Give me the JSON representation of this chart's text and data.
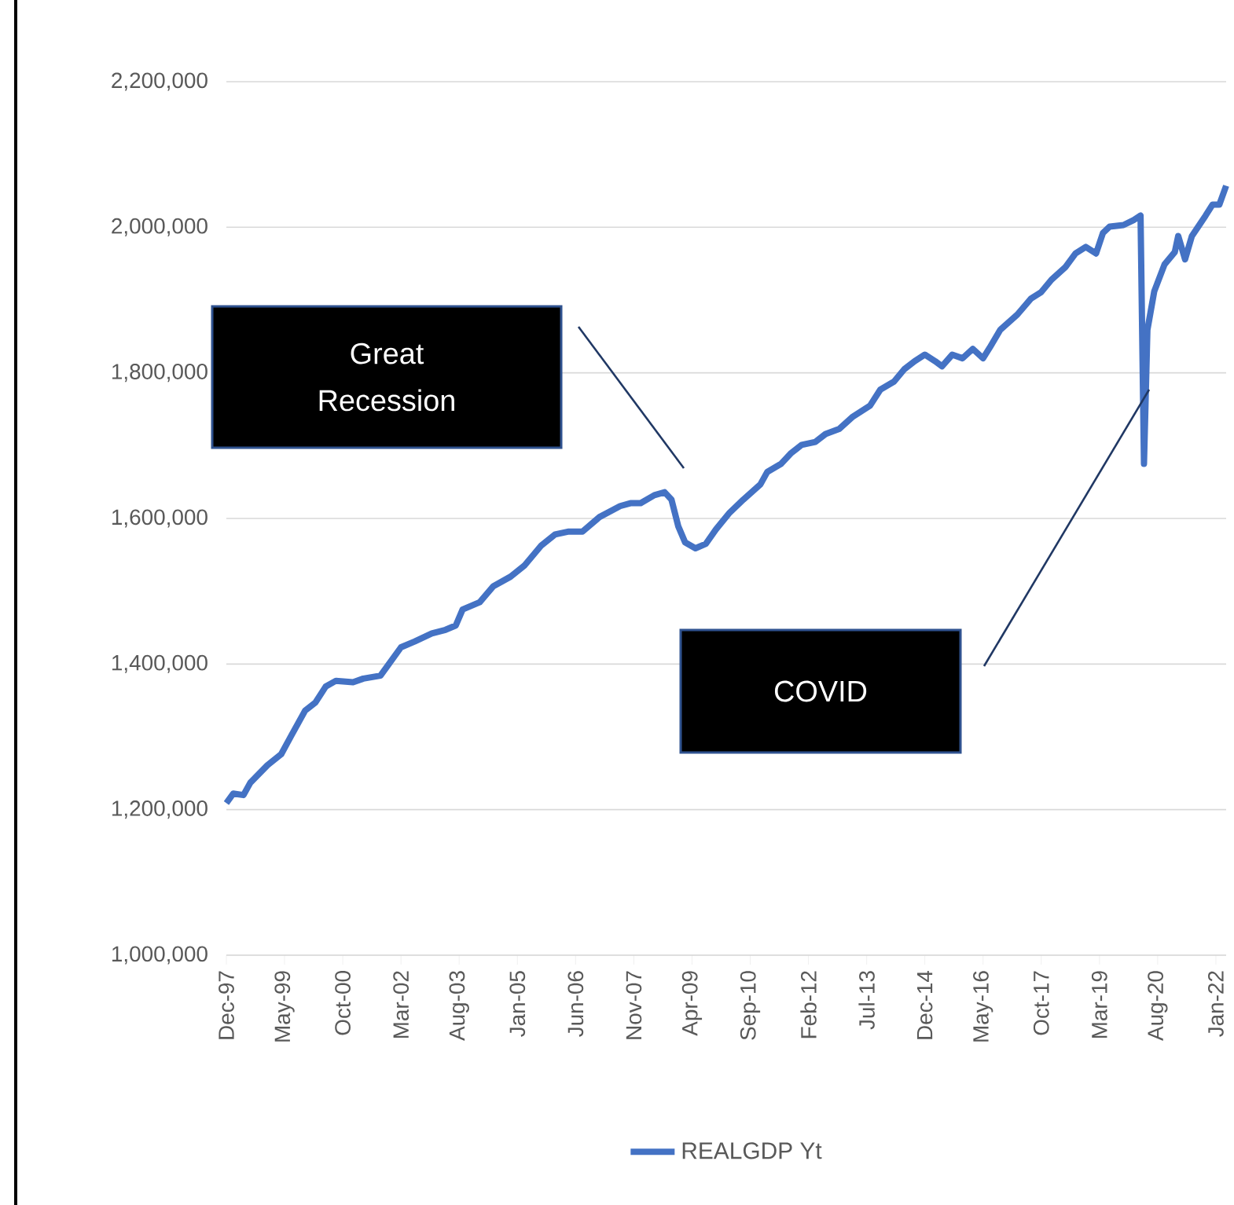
{
  "chart_data": {
    "type": "line",
    "x": [
      "1997-12",
      "1998-02",
      "1998-05",
      "1998-07",
      "1998-12",
      "1999-04",
      "1999-07",
      "1999-11",
      "2000-02",
      "2000-05",
      "2000-08",
      "2001-01",
      "2001-04",
      "2001-09",
      "2001-11",
      "2002-03",
      "2002-07",
      "2002-12",
      "2003-04",
      "2003-07",
      "2003-09",
      "2004-02",
      "2004-06",
      "2004-11",
      "2005-03",
      "2005-08",
      "2005-12",
      "2006-04",
      "2006-08",
      "2007-01",
      "2007-07",
      "2007-10",
      "2008-01",
      "2008-05",
      "2008-08",
      "2008-10",
      "2008-12",
      "2009-02",
      "2009-05",
      "2009-08",
      "2009-11",
      "2010-03",
      "2010-07",
      "2010-12",
      "2011-02",
      "2011-06",
      "2011-09",
      "2011-12",
      "2012-04",
      "2012-07",
      "2012-11",
      "2013-03",
      "2013-08",
      "2013-11",
      "2014-03",
      "2014-06",
      "2014-09",
      "2014-12",
      "2015-03",
      "2015-05",
      "2015-08",
      "2015-11",
      "2016-02",
      "2016-05",
      "2016-07",
      "2016-10",
      "2017-03",
      "2017-07",
      "2017-10",
      "2018-01",
      "2018-05",
      "2018-08",
      "2018-11",
      "2019-02",
      "2019-04",
      "2019-06",
      "2019-10",
      "2020-01",
      "2020-03",
      "2020-04",
      "2020-05",
      "2020-07",
      "2020-10",
      "2021-01",
      "2021-02",
      "2021-04",
      "2021-06",
      "2021-10",
      "2021-12",
      "2022-02",
      "2022-04"
    ],
    "series": [
      {
        "name": "REALGDP Yt",
        "color": "#4472c4",
        "values": [
          1209000,
          1222000,
          1220000,
          1237000,
          1261000,
          1276000,
          1302000,
          1336000,
          1347000,
          1369000,
          1377000,
          1375000,
          1380000,
          1384000,
          1397000,
          1423000,
          1431000,
          1442000,
          1447000,
          1453000,
          1475000,
          1485000,
          1507000,
          1520000,
          1535000,
          1563000,
          1578000,
          1582000,
          1582000,
          1602000,
          1617000,
          1621000,
          1621000,
          1632000,
          1636000,
          1626000,
          1589000,
          1567000,
          1559000,
          1565000,
          1585000,
          1608000,
          1626000,
          1647000,
          1664000,
          1675000,
          1690000,
          1701000,
          1705000,
          1716000,
          1723000,
          1740000,
          1755000,
          1777000,
          1788000,
          1805000,
          1816000,
          1825000,
          1816000,
          1809000,
          1825000,
          1820000,
          1833000,
          1820000,
          1835000,
          1859000,
          1880000,
          1902000,
          1911000,
          1928000,
          1945000,
          1964000,
          1973000,
          1964000,
          1992000,
          2001000,
          2003000,
          2010000,
          2016000,
          1675000,
          1859000,
          1912000,
          1949000,
          1966000,
          1988000,
          1956000,
          1988000,
          2016000,
          2031000,
          2031000,
          2057000
        ]
      }
    ],
    "xlim": [
      "1997-12",
      "2022-04"
    ],
    "xticks": [
      {
        "value": "1997-12",
        "label": "Dec-97"
      },
      {
        "value": "1999-05",
        "label": "May-99"
      },
      {
        "value": "2000-10",
        "label": "Oct-00"
      },
      {
        "value": "2002-03",
        "label": "Mar-02"
      },
      {
        "value": "2003-08",
        "label": "Aug-03"
      },
      {
        "value": "2005-01",
        "label": "Jan-05"
      },
      {
        "value": "2006-06",
        "label": "Jun-06"
      },
      {
        "value": "2007-11",
        "label": "Nov-07"
      },
      {
        "value": "2009-04",
        "label": "Apr-09"
      },
      {
        "value": "2010-09",
        "label": "Sep-10"
      },
      {
        "value": "2012-02",
        "label": "Feb-12"
      },
      {
        "value": "2013-07",
        "label": "Jul-13"
      },
      {
        "value": "2014-12",
        "label": "Dec-14"
      },
      {
        "value": "2016-05",
        "label": "May-16"
      },
      {
        "value": "2017-10",
        "label": "Oct-17"
      },
      {
        "value": "2019-03",
        "label": "Mar-19"
      },
      {
        "value": "2020-08",
        "label": "Aug-20"
      },
      {
        "value": "2022-01",
        "label": "Jan-22"
      }
    ],
    "ylim": [
      1000000,
      2200000
    ],
    "yticks": [
      {
        "value": 1000000,
        "label": "1,000,000"
      },
      {
        "value": 1200000,
        "label": "1,200,000"
      },
      {
        "value": 1400000,
        "label": "1,400,000"
      },
      {
        "value": 1600000,
        "label": "1,600,000"
      },
      {
        "value": 1800000,
        "label": "1,800,000"
      },
      {
        "value": 2000000,
        "label": "2,000,000"
      },
      {
        "value": 2200000,
        "label": "2,200,000"
      }
    ],
    "grid": "y",
    "legend": "bottom",
    "annotations": [
      "Great Recession",
      "COVID"
    ]
  }
}
